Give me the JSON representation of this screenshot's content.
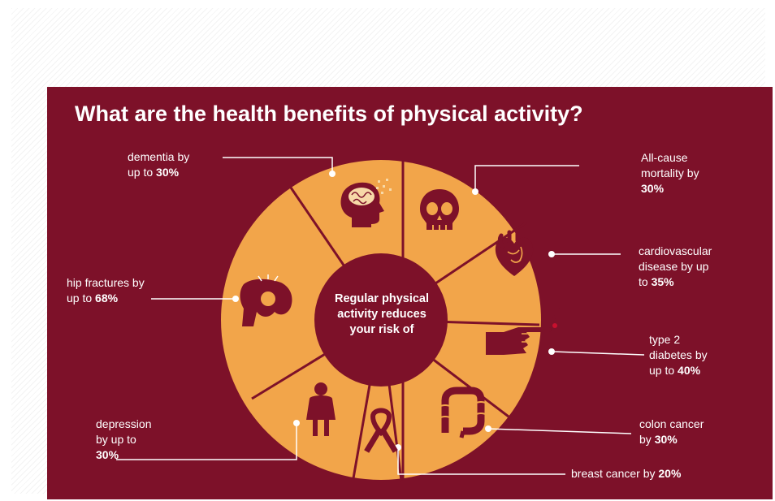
{
  "title": "What are the health benefits of physical activity?",
  "center_lines": [
    "Regular physical",
    "activity reduces",
    "your risk of"
  ],
  "colors": {
    "background": "#7d1129",
    "segment": "#f2a54a",
    "center": "#7d1129",
    "icon": "#7d1129",
    "text": "#ffffff"
  },
  "benefits": [
    {
      "id": "dementia",
      "icon": "brain-head-icon",
      "lines": [
        "dementia by",
        "up to "
      ],
      "value": "30%"
    },
    {
      "id": "mortality",
      "icon": "skull-icon",
      "lines": [
        "All-cause",
        "mortality by",
        ""
      ],
      "value": "30%"
    },
    {
      "id": "cardiovascular",
      "icon": "heart-icon",
      "lines": [
        "cardiovascular",
        "disease by up",
        "to "
      ],
      "value": "35%"
    },
    {
      "id": "diabetes",
      "icon": "finger-prick-icon",
      "lines": [
        "type 2",
        "diabetes by",
        "up to "
      ],
      "value": "40%"
    },
    {
      "id": "colon-cancer",
      "icon": "colon-icon",
      "lines": [
        "colon cancer",
        "by "
      ],
      "value": "30%"
    },
    {
      "id": "breast-cancer",
      "icon": "ribbon-icon",
      "lines": [
        "breast cancer by "
      ],
      "value": "20%"
    },
    {
      "id": "depression",
      "icon": "person-icon",
      "lines": [
        "depression",
        "by up to",
        ""
      ],
      "value": "30%"
    },
    {
      "id": "hip-fractures",
      "icon": "hip-bone-icon",
      "lines": [
        "hip fractures by",
        "up to "
      ],
      "value": "68%"
    }
  ]
}
